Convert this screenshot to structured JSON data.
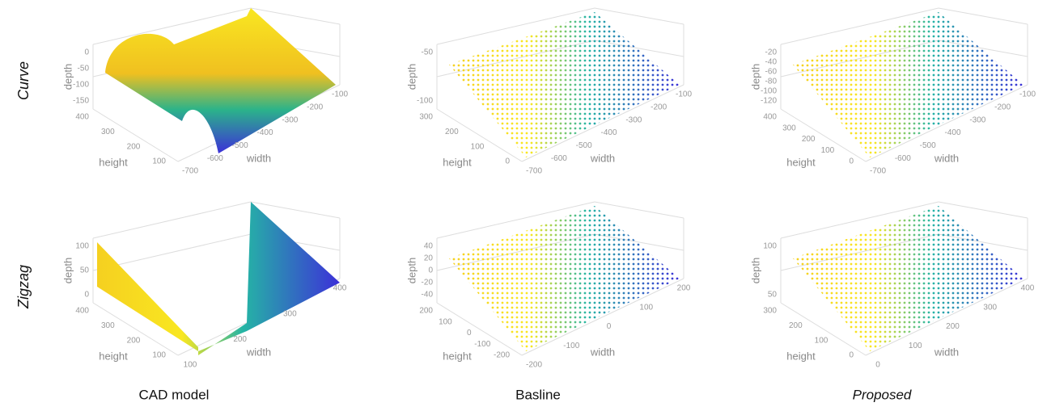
{
  "rows": [
    "Curve",
    "Zigzag"
  ],
  "columns": [
    "CAD model",
    "Basline",
    "Proposed"
  ],
  "panels": [
    {
      "z_label": "depth",
      "y_label": "height",
      "x_label": "width",
      "zticks": [
        0,
        -50,
        -100,
        -150
      ],
      "yticks": [
        400,
        300,
        200,
        100
      ],
      "xticks": [
        -700,
        -600,
        -500,
        -400,
        -300,
        -200,
        -100
      ]
    },
    {
      "z_label": "depth",
      "y_label": "height",
      "x_label": "width",
      "zticks": [
        -50,
        -100
      ],
      "yticks": [
        300,
        200,
        100,
        0
      ],
      "xticks": [
        -700,
        -600,
        -500,
        -400,
        -300,
        -200,
        -100
      ]
    },
    {
      "z_label": "depth",
      "y_label": "height",
      "x_label": "width",
      "zticks": [
        -20,
        -40,
        -60,
        -80,
        -100,
        -120
      ],
      "yticks": [
        400,
        300,
        200,
        100,
        0
      ],
      "xticks": [
        -700,
        -600,
        -500,
        -400,
        -300,
        -200,
        -100
      ]
    },
    {
      "z_label": "depth",
      "y_label": "height",
      "x_label": "width",
      "zticks": [
        100,
        50,
        0
      ],
      "yticks": [
        400,
        300,
        200,
        100
      ],
      "xticks": [
        100,
        200,
        300,
        400
      ]
    },
    {
      "z_label": "depth",
      "y_label": "height",
      "x_label": "width",
      "zticks": [
        40,
        20,
        0,
        -20,
        -40
      ],
      "yticks": [
        200,
        100,
        0,
        -100,
        -200
      ],
      "xticks": [
        -200,
        -100,
        0,
        100,
        200
      ]
    },
    {
      "z_label": "depth",
      "y_label": "height",
      "x_label": "width",
      "zticks": [
        100,
        50
      ],
      "yticks": [
        300,
        200,
        100,
        0
      ],
      "xticks": [
        0,
        100,
        200,
        300,
        400
      ]
    }
  ]
}
